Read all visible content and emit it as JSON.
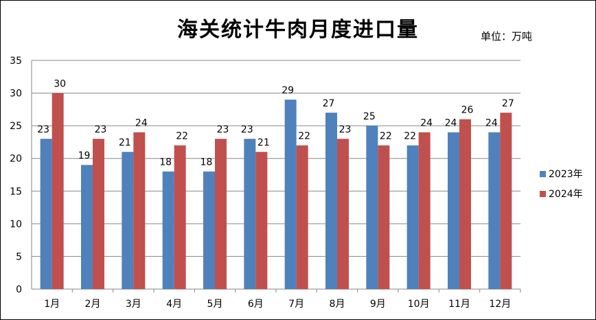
{
  "title": "海关统计牛肉月度进口量",
  "unit": "单位：万吨",
  "chart_data": {
    "type": "bar",
    "title": "海关统计牛肉月度进口量",
    "xlabel": "",
    "ylabel": "",
    "categories": [
      "1月",
      "2月",
      "3月",
      "4月",
      "5月",
      "6月",
      "7月",
      "8月",
      "9月",
      "10月",
      "11月",
      "12月"
    ],
    "series": [
      {
        "name": "2023年",
        "color": "#4F81BD",
        "values": [
          23,
          19,
          21,
          18,
          18,
          23,
          29,
          27,
          25,
          22,
          24,
          24
        ]
      },
      {
        "name": "2024年",
        "color": "#C0504D",
        "values": [
          30,
          23,
          24,
          22,
          23,
          21,
          22,
          23,
          22,
          24,
          26,
          27
        ]
      }
    ],
    "ylim": [
      0,
      35
    ],
    "yticks": [
      0,
      5,
      10,
      15,
      20,
      25,
      30,
      35
    ],
    "grid": true,
    "data_labels": true,
    "legend": "right"
  }
}
